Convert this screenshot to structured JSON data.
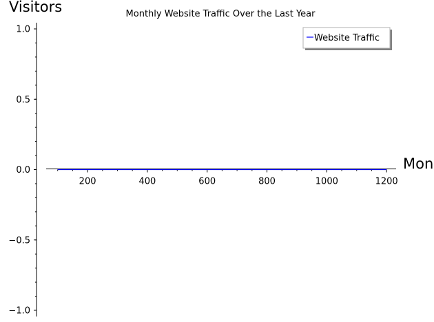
{
  "chart_data": {
    "type": "line",
    "title": "Monthly Website Traffic Over the Last Year",
    "xlabel": "Mon",
    "ylabel": "Visitors",
    "xlim": [
      80,
      1225
    ],
    "ylim": [
      -1.0,
      1.0
    ],
    "x_ticks": [
      200,
      400,
      600,
      800,
      1000,
      1200
    ],
    "x_tick_labels": [
      "200",
      "400",
      "600",
      "800",
      "1000",
      "1200"
    ],
    "y_ticks": [
      1.0,
      0.5,
      0.0,
      -0.5,
      -1.0
    ],
    "y_tick_labels": [
      "1.0",
      "0.5",
      "0.0",
      "−0.5",
      "−1.0"
    ],
    "grid": false,
    "legend_position": "top-right",
    "series": [
      {
        "name": "Website Traffic",
        "color": "#0000ff",
        "x": [
          100,
          1200
        ],
        "y": [
          0,
          0
        ]
      }
    ]
  }
}
